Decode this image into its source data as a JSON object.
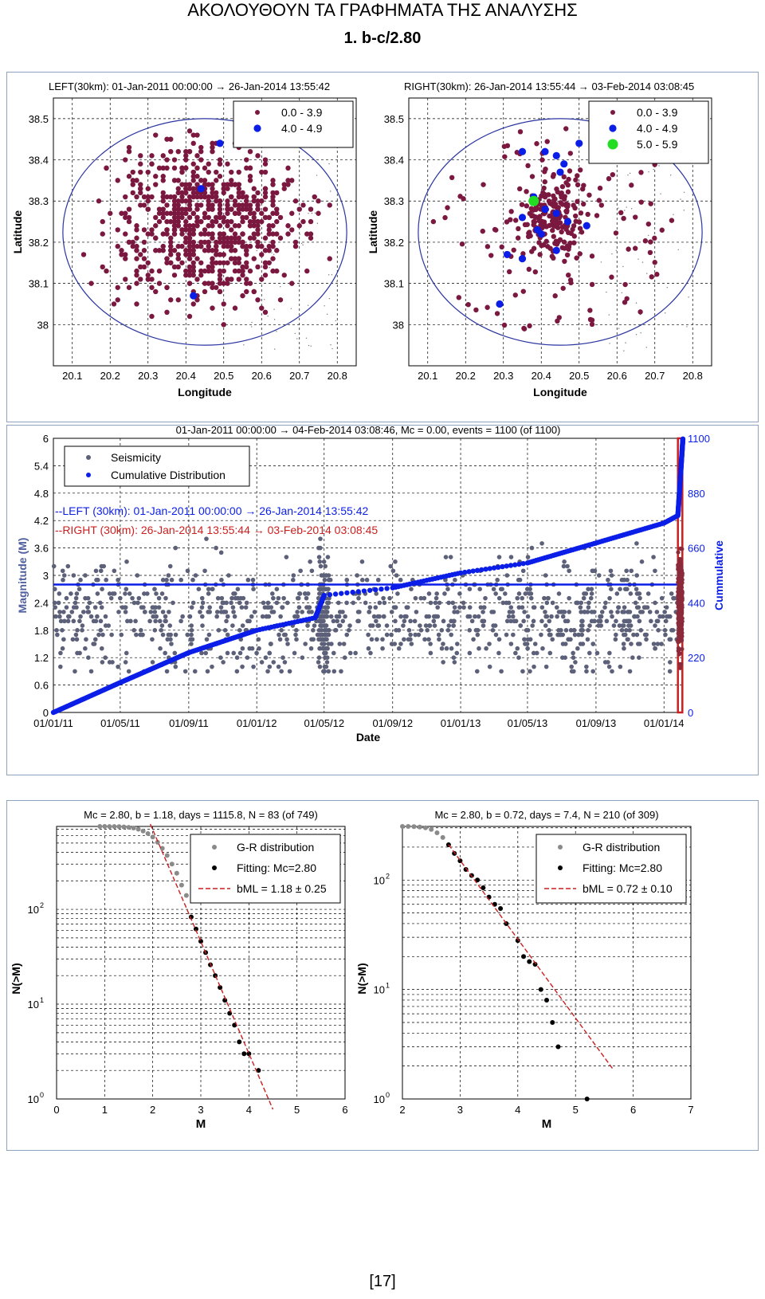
{
  "document": {
    "title": "ΑΚΟΛΟΥΘΟΥΝ ΤΑ ΓΡΑΦΗΜΑΤΑ ΤΗΣ ΑΝΑΛΥΣΗΣ",
    "subtitle": "1.   b-c/2.80",
    "page_number": "[17]"
  },
  "colors": {
    "small_event": "#7a1840",
    "medium_event": "#0b1ee8",
    "large_event": "#22dd22",
    "circle": "#2a35a0",
    "cumulative": "#0b1ee8",
    "seismicity": "#5c6078",
    "right_line": "#cc1f1f",
    "gr_points": "#8a8a8a",
    "fit_points": "#000000",
    "fit_line": "#cc1f1f",
    "panel_border": "#8ea3bf"
  },
  "chart_data": [
    {
      "id": "map-left",
      "type": "scatter",
      "title": "LEFT(30km): 01-Jan-2011 00:00:00 → 26-Jan-2014 13:55:42",
      "xlabel": "Longitude",
      "ylabel": "Latitude",
      "xlim": [
        20.05,
        20.85
      ],
      "ylim": [
        37.9,
        38.55
      ],
      "xticks": [
        "20.1",
        "20.2",
        "20.3",
        "20.4",
        "20.5",
        "20.6",
        "20.7",
        "20.8"
      ],
      "yticks": [
        "38",
        "38.1",
        "38.2",
        "38.3",
        "38.4",
        "38.5"
      ],
      "grid": true,
      "legend_position": "top-right",
      "circle": {
        "center": [
          20.45,
          38.225
        ],
        "radius_lon": 0.375,
        "radius_lat": 0.275
      },
      "series": [
        {
          "name": "0.0 - 3.9",
          "approx_count": 745,
          "spread_lon": 0.12,
          "spread_lat": 0.1,
          "center": [
            20.45,
            38.25
          ]
        },
        {
          "name": "4.0 - 4.9",
          "points": [
            [
              20.49,
              38.44
            ],
            [
              20.44,
              38.33
            ],
            [
              20.42,
              38.07
            ]
          ]
        }
      ]
    },
    {
      "id": "map-right",
      "type": "scatter",
      "title": "RIGHT(30km): 26-Jan-2014 13:55:44 → 03-Feb-2014 03:08:45",
      "xlabel": "Longitude",
      "ylabel": "Latitude",
      "xlim": [
        20.05,
        20.85
      ],
      "ylim": [
        37.9,
        38.55
      ],
      "xticks": [
        "20.1",
        "20.2",
        "20.3",
        "20.4",
        "20.5",
        "20.6",
        "20.7",
        "20.8"
      ],
      "yticks": [
        "38",
        "38.1",
        "38.2",
        "38.3",
        "38.4",
        "38.5"
      ],
      "grid": true,
      "legend_position": "top-right",
      "circle": {
        "center": [
          20.45,
          38.225
        ],
        "radius_lon": 0.375,
        "radius_lat": 0.275
      },
      "series": [
        {
          "name": "0.0 - 3.9",
          "approx_count": 290,
          "center": [
            20.43,
            38.26
          ],
          "spread_lon": 0.09,
          "spread_lat": 0.08
        },
        {
          "name": "4.0 - 4.9",
          "points": [
            [
              20.35,
              38.42
            ],
            [
              20.41,
              38.42
            ],
            [
              20.44,
              38.41
            ],
            [
              20.46,
              38.39
            ],
            [
              20.45,
              38.37
            ],
            [
              20.5,
              38.44
            ],
            [
              20.38,
              38.31
            ],
            [
              20.41,
              38.28
            ],
            [
              20.44,
              38.27
            ],
            [
              20.39,
              38.23
            ],
            [
              20.4,
              38.22
            ],
            [
              20.44,
              38.18
            ],
            [
              20.47,
              38.25
            ],
            [
              20.52,
              38.24
            ],
            [
              20.35,
              38.26
            ],
            [
              20.31,
              38.17
            ],
            [
              20.35,
              38.16
            ],
            [
              20.29,
              38.05
            ]
          ]
        },
        {
          "name": "5.0 - 5.9",
          "points": [
            [
              20.38,
              38.3
            ]
          ]
        }
      ]
    },
    {
      "id": "timeline",
      "type": "scatter",
      "title": "01-Jan-2011 00:00:00 → 04-Feb-2014 03:08:46, Mc = 0.00, events = 1100 (of 1100)",
      "xlabel": "Date",
      "ylabel": "Magnitude (M)",
      "y2label": "Cummulative",
      "xticks": [
        "01/01/11",
        "01/05/11",
        "01/09/11",
        "01/01/12",
        "01/05/12",
        "01/09/12",
        "01/01/13",
        "01/05/13",
        "01/09/13",
        "01/01/14"
      ],
      "xlim": [
        "2011-01-01",
        "2014-02-04"
      ],
      "ylim": [
        0,
        6
      ],
      "yticks": [
        "0",
        "0.6",
        "1.2",
        "1.8",
        "2.4",
        "3",
        "3.6",
        "4.2",
        "4.8",
        "5.4",
        "6"
      ],
      "y2lim": [
        0,
        1100
      ],
      "y2ticks": [
        "0",
        "220",
        "440",
        "660",
        "880",
        "1100"
      ],
      "grid": true,
      "legend_position": "top-left",
      "legend": [
        "Seismicity",
        "Cumulative Distribution"
      ],
      "annotations": [
        "--LEFT (30km): 01-Jan-2011 00:00:00  → 26-Jan-2014 13:55:42",
        "--RIGHT (30km): 26-Jan-2014 13:55:44  → 03-Feb-2014 03:08:45"
      ],
      "mc_line": 2.8,
      "cumulative_keypoints": [
        [
          "2011-01-01",
          0
        ],
        [
          "2011-05-01",
          120
        ],
        [
          "2011-09-01",
          240
        ],
        [
          "2012-01-01",
          330
        ],
        [
          "2012-04-15",
          380
        ],
        [
          "2012-05-01",
          470
        ],
        [
          "2012-09-01",
          500
        ],
        [
          "2013-01-01",
          560
        ],
        [
          "2013-05-01",
          600
        ],
        [
          "2013-09-01",
          680
        ],
        [
          "2014-01-01",
          760
        ],
        [
          "2014-01-26",
          790
        ],
        [
          "2014-02-04",
          1100
        ]
      ],
      "seismicity_summary": {
        "approx_count": 1100,
        "typical_range": [
          0.9,
          3.3
        ]
      }
    },
    {
      "id": "gr-left",
      "type": "scatter",
      "title": "Mc = 2.80, b = 1.18, days = 1115.8, N = 83 (of 749)",
      "xlabel": "M",
      "ylabel": "N(>M)",
      "xlim": [
        0,
        6
      ],
      "xticks": [
        "0",
        "1",
        "2",
        "3",
        "4",
        "5",
        "6"
      ],
      "ylog": true,
      "ylim": [
        1,
        749
      ],
      "legend_position": "top-right",
      "legend": [
        "G-R distribution",
        "Fitting: Mc=2.80",
        "bML = 1.18 ± 0.25"
      ],
      "gr_points": [
        [
          0.9,
          749
        ],
        [
          1.0,
          749
        ],
        [
          1.1,
          748
        ],
        [
          1.2,
          747
        ],
        [
          1.3,
          745
        ],
        [
          1.4,
          740
        ],
        [
          1.5,
          732
        ],
        [
          1.6,
          720
        ],
        [
          1.7,
          700
        ],
        [
          1.8,
          670
        ],
        [
          1.9,
          630
        ],
        [
          2.0,
          580
        ],
        [
          2.1,
          510
        ],
        [
          2.2,
          440
        ],
        [
          2.3,
          370
        ],
        [
          2.4,
          300
        ],
        [
          2.5,
          240
        ],
        [
          2.6,
          180
        ],
        [
          2.7,
          140
        ]
      ],
      "fit_points": [
        [
          2.8,
          83
        ],
        [
          2.9,
          62
        ],
        [
          3.0,
          46
        ],
        [
          3.1,
          35
        ],
        [
          3.2,
          26
        ],
        [
          3.3,
          20
        ],
        [
          3.4,
          15
        ],
        [
          3.5,
          11
        ],
        [
          3.6,
          8
        ],
        [
          3.7,
          6
        ],
        [
          3.8,
          4
        ],
        [
          3.9,
          3
        ],
        [
          4.0,
          3
        ],
        [
          4.2,
          2
        ]
      ],
      "fit_line": {
        "a": 5.2,
        "b": 1.18,
        "x_range": [
          1.95,
          4.5
        ]
      }
    },
    {
      "id": "gr-right",
      "type": "scatter",
      "title": "Mc = 2.80, b = 0.72, days = 7.4, N = 210 (of 309)",
      "xlabel": "M",
      "ylabel": "N(>M)",
      "xlim": [
        2,
        7
      ],
      "xticks": [
        "2",
        "3",
        "4",
        "5",
        "6",
        "7"
      ],
      "ylog": true,
      "ylim": [
        1,
        309
      ],
      "legend_position": "top-right",
      "legend": [
        "G-R distribution",
        "Fitting: Mc=2.80",
        "bML = 0.72 ± 0.10"
      ],
      "gr_points": [
        [
          2.0,
          309
        ],
        [
          2.1,
          309
        ],
        [
          2.2,
          308
        ],
        [
          2.3,
          305
        ],
        [
          2.4,
          300
        ],
        [
          2.5,
          290
        ],
        [
          2.6,
          270
        ],
        [
          2.7,
          245
        ]
      ],
      "fit_points": [
        [
          2.8,
          210
        ],
        [
          2.9,
          175
        ],
        [
          3.0,
          150
        ],
        [
          3.1,
          125
        ],
        [
          3.2,
          110
        ],
        [
          3.3,
          100
        ],
        [
          3.4,
          85
        ],
        [
          3.5,
          70
        ],
        [
          3.6,
          60
        ],
        [
          3.7,
          55
        ],
        [
          3.8,
          40
        ],
        [
          4.0,
          28
        ],
        [
          4.1,
          20
        ],
        [
          4.2,
          18
        ],
        [
          4.3,
          17
        ],
        [
          4.4,
          10
        ],
        [
          4.5,
          8
        ],
        [
          4.6,
          5
        ],
        [
          4.7,
          3
        ],
        [
          5.2,
          1
        ]
      ],
      "fit_line": {
        "a": 4.34,
        "b": 0.72,
        "x_range": [
          2.8,
          5.65
        ]
      }
    }
  ]
}
